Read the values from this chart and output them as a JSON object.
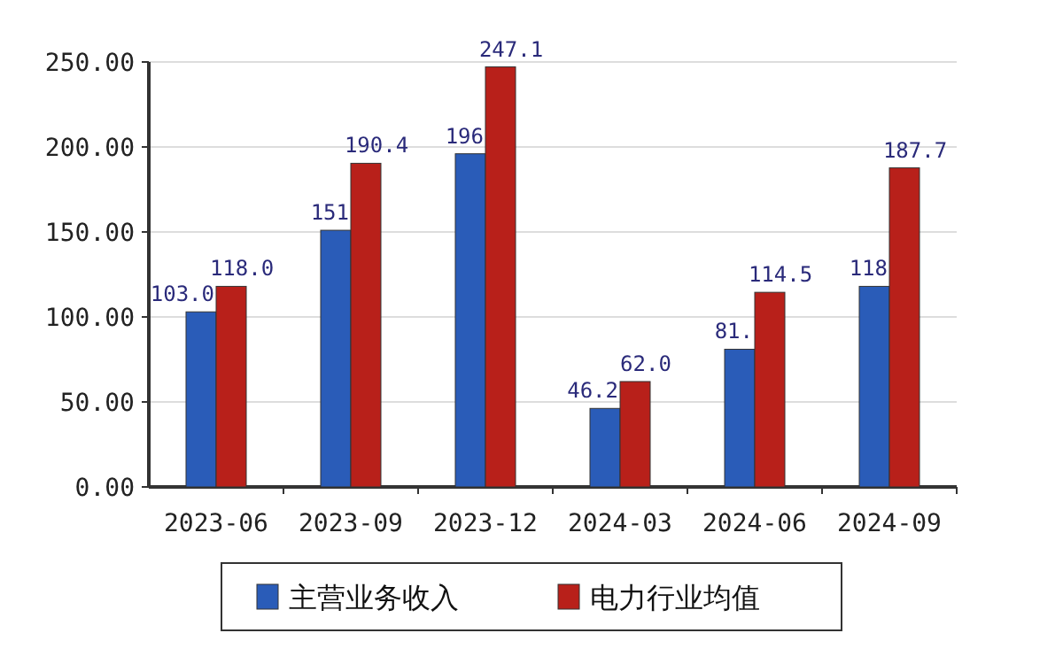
{
  "chart_data": {
    "type": "bar",
    "categories": [
      "2023-06",
      "2023-09",
      "2023-12",
      "2024-03",
      "2024-06",
      "2024-09"
    ],
    "series": [
      {
        "name": "主营业务收入",
        "color": "#2a5cb8",
        "values": [
          103.0,
          151,
          196,
          46.2,
          81,
          118
        ],
        "value_labels": [
          "103.0",
          "151",
          "196",
          "46.2",
          "81.",
          "118"
        ]
      },
      {
        "name": "电力行业均值",
        "color": "#b8201a",
        "values": [
          118.0,
          190.4,
          247.1,
          62.0,
          114.5,
          187.7
        ],
        "value_labels": [
          "118.0",
          "190.4",
          "247.1",
          "62.0",
          "114.5",
          "187.7"
        ]
      }
    ],
    "ylim": [
      0,
      250
    ],
    "yticks": [
      {
        "value": 0,
        "label": "0.00"
      },
      {
        "value": 50,
        "label": "50.00"
      },
      {
        "value": 100,
        "label": "100.00"
      },
      {
        "value": 150,
        "label": "150.00"
      },
      {
        "value": 200,
        "label": "200.00"
      },
      {
        "value": 250,
        "label": "250.00"
      }
    ],
    "grid": "y",
    "legend": "bottom"
  }
}
